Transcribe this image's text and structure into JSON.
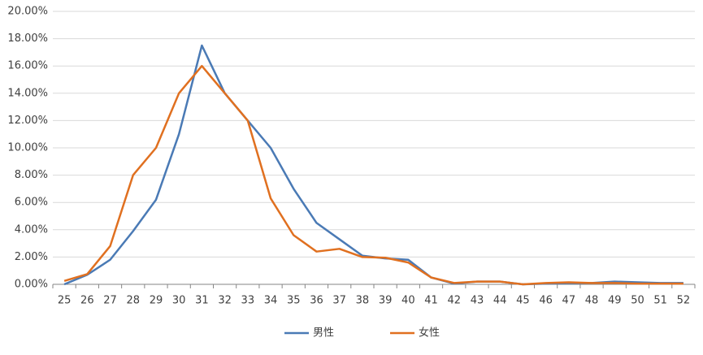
{
  "chart_data": {
    "type": "line",
    "categories": [
      "25",
      "26",
      "27",
      "28",
      "29",
      "30",
      "31",
      "32",
      "33",
      "34",
      "35",
      "36",
      "37",
      "38",
      "39",
      "40",
      "41",
      "42",
      "43",
      "44",
      "45",
      "46",
      "47",
      "48",
      "49",
      "50",
      "51",
      "52"
    ],
    "series": [
      {
        "name": "男性",
        "color": "#4a7ab5",
        "values": [
          0,
          0.7,
          1.8,
          3.9,
          6.2,
          11,
          17.5,
          14,
          12,
          10,
          7,
          4.5,
          3.3,
          2.1,
          1.9,
          1.8,
          0.5,
          0.05,
          0.2,
          0.2,
          0,
          0.05,
          0.1,
          0.1,
          0.2,
          0.15,
          0.1,
          0.1
        ]
      },
      {
        "name": "女性",
        "color": "#e07020",
        "values": [
          0.25,
          0.75,
          2.8,
          8,
          10,
          14,
          16,
          14,
          12,
          6.3,
          3.6,
          2.4,
          2.6,
          2,
          1.95,
          1.6,
          0.5,
          0.1,
          0.2,
          0.2,
          0,
          0.1,
          0.15,
          0.1,
          0.1,
          0.05,
          0.05,
          0.05
        ]
      }
    ],
    "ylim": [
      0,
      20
    ],
    "yticks": [
      {
        "value": 0,
        "label": "0.00%"
      },
      {
        "value": 2,
        "label": "2.00%"
      },
      {
        "value": 4,
        "label": "4.00%"
      },
      {
        "value": 6,
        "label": "6.00%"
      },
      {
        "value": 8,
        "label": "8.00%"
      },
      {
        "value": 10,
        "label": "10.00%"
      },
      {
        "value": 12,
        "label": "12.00%"
      },
      {
        "value": 14,
        "label": "14.00%"
      },
      {
        "value": 16,
        "label": "16.00%"
      },
      {
        "value": 18,
        "label": "18.00%"
      },
      {
        "value": 20,
        "label": "20.00%"
      }
    ],
    "grid": true,
    "legend": "bottom"
  }
}
